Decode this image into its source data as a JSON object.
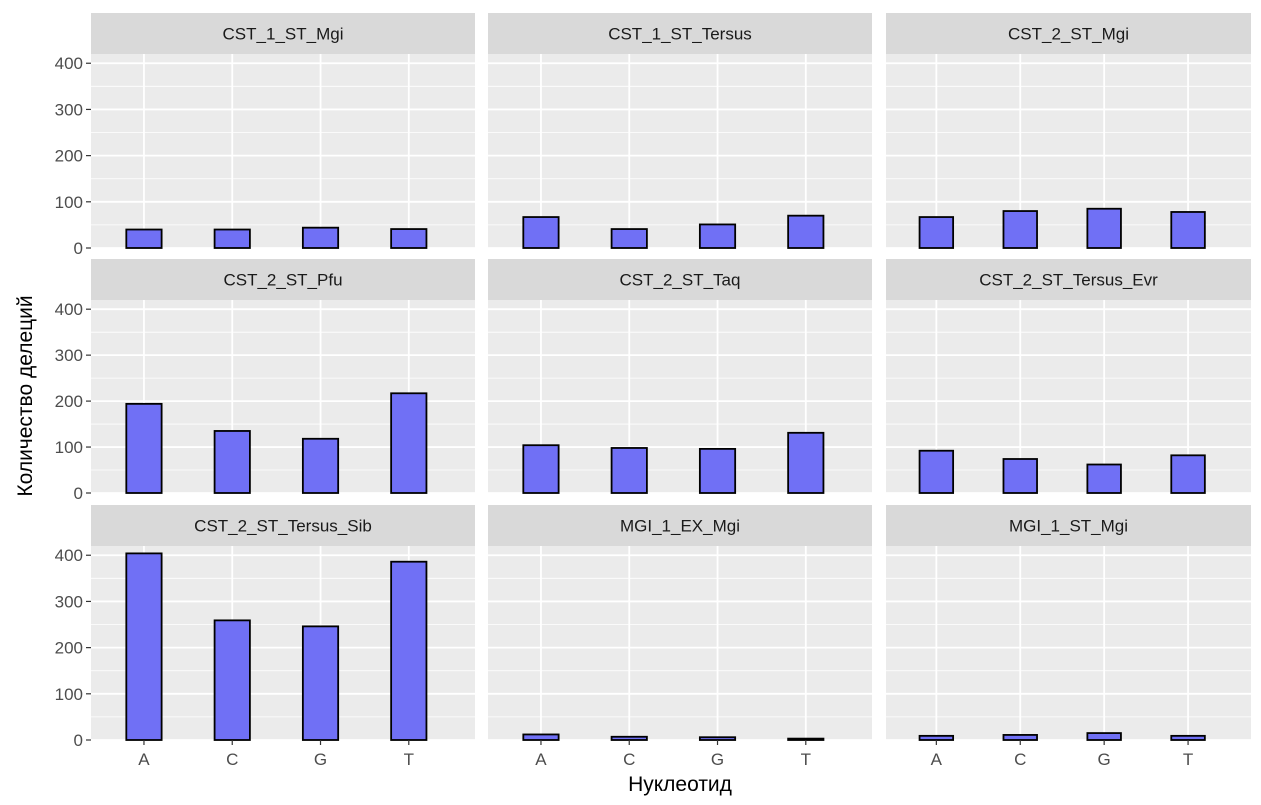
{
  "chart_data": {
    "type": "bar",
    "layout": "facet-grid",
    "xlabel": "Нуклеотид",
    "ylabel": "Количество делеций",
    "categories": [
      "A",
      "C",
      "G",
      "T"
    ],
    "ylim": [
      0,
      420
    ],
    "yticks": [
      0,
      100,
      200,
      300,
      400
    ],
    "grid": true,
    "legend": "none",
    "colors": {
      "bar_fill": "#7070f5",
      "bar_stroke": "#000000",
      "panel_bg": "#ebebeb",
      "strip_bg": "#d9d9d9",
      "grid": "#ffffff"
    },
    "facets": [
      {
        "name": "CST_1_ST_Mgi",
        "values": [
          40,
          40,
          44,
          41
        ]
      },
      {
        "name": "CST_1_ST_Tersus",
        "values": [
          67,
          41,
          51,
          70
        ]
      },
      {
        "name": "CST_2_ST_Mgi",
        "values": [
          67,
          80,
          85,
          78
        ]
      },
      {
        "name": "CST_2_ST_Pfu",
        "values": [
          194,
          135,
          118,
          217
        ]
      },
      {
        "name": "CST_2_ST_Taq",
        "values": [
          104,
          98,
          96,
          131
        ]
      },
      {
        "name": "CST_2_ST_Tersus_Evr",
        "values": [
          92,
          74,
          62,
          82
        ]
      },
      {
        "name": "CST_2_ST_Tersus_Sib",
        "values": [
          404,
          259,
          246,
          386
        ]
      },
      {
        "name": "MGI_1_EX_Mgi",
        "values": [
          12,
          7,
          6,
          3
        ]
      },
      {
        "name": "MGI_1_ST_Mgi",
        "values": [
          9,
          11,
          15,
          9
        ]
      }
    ]
  }
}
